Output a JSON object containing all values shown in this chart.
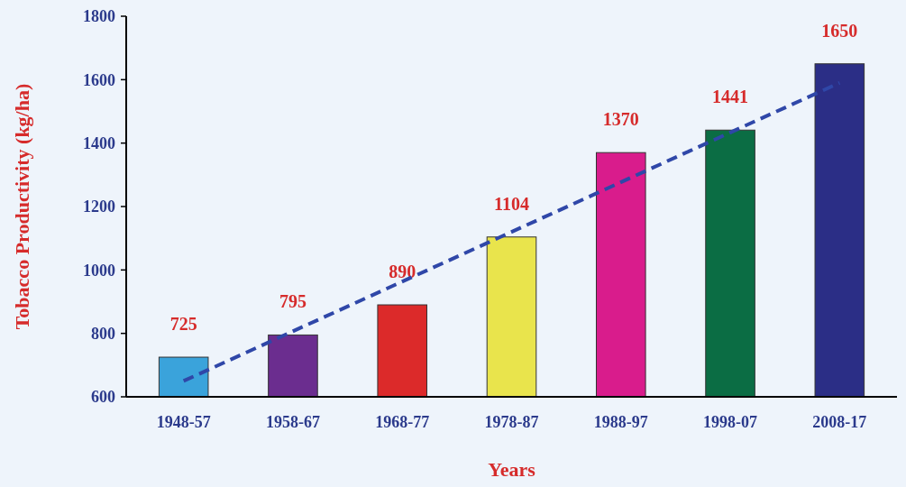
{
  "chart_data": {
    "type": "bar",
    "xlabel": "Years",
    "ylabel": "Tobacco Productivity (kg/ha)",
    "categories": [
      "1948-57",
      "1958-67",
      "1968-77",
      "1978-87",
      "1988-97",
      "1998-07",
      "2008-17"
    ],
    "series": [
      {
        "values": [
          725,
          795,
          890,
          1104,
          1370,
          1441,
          1650
        ],
        "colors": [
          "#3aa3db",
          "#6b2d8f",
          "#dc2a2a",
          "#e9e44c",
          "#d91c8c",
          "#0b6d44",
          "#2b2e86"
        ],
        "value_labels": [
          "725",
          "795",
          "890",
          "1104",
          "1370",
          "1441",
          "1650"
        ]
      },
      {
        "type": "line",
        "x": [
          "1948-57",
          "2008-17"
        ],
        "values": [
          650,
          1590
        ],
        "color": "#2f47a8",
        "line_style": "dashed",
        "marker": "none"
      }
    ],
    "ylim": [
      600,
      1800
    ],
    "yticks": [
      600,
      800,
      1000,
      1200,
      1400,
      1600,
      1800
    ],
    "grid": false
  }
}
